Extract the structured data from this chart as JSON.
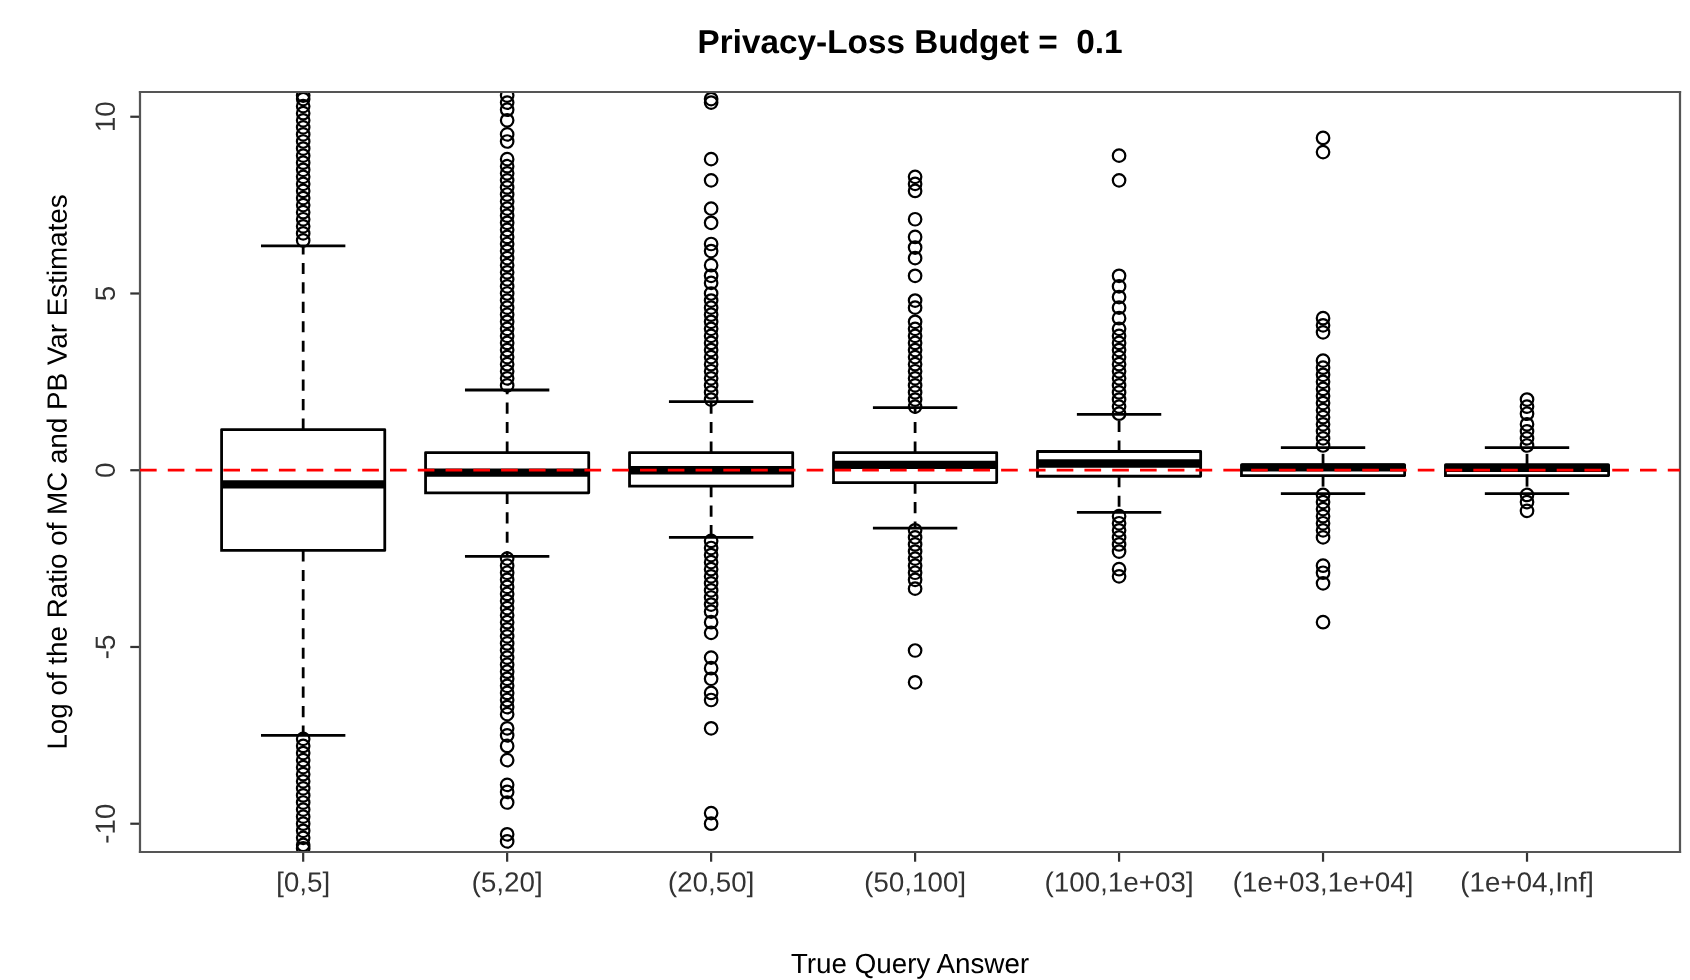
{
  "chart_data": {
    "type": "box",
    "title": "Privacy-Loss Budget =  0.1",
    "xlabel": "True Query Answer",
    "ylabel": "Log of the Ratio of MC and PB Var Estimates",
    "categories": [
      "[0,5]",
      "(5,20]",
      "(20,50]",
      "(50,100]",
      "(100,1e+03]",
      "(1e+03,1e+04]",
      "(1e+04,Inf]"
    ],
    "boxes": [
      {
        "low": -7.5,
        "q1": -2.27,
        "median": -0.4,
        "q3": 1.15,
        "high": 6.35,
        "outliers": [
          6.5,
          6.7,
          6.9,
          7.1,
          7.3,
          7.5,
          7.7,
          7.9,
          8.1,
          8.3,
          8.5,
          8.7,
          8.9,
          9.1,
          9.3,
          9.5,
          9.7,
          9.9,
          10.1,
          10.3,
          10.5,
          10.6,
          -7.6,
          -7.8,
          -8.0,
          -8.2,
          -8.4,
          -8.6,
          -8.8,
          -9.0,
          -9.2,
          -9.4,
          -9.6,
          -9.8,
          -10.0,
          -10.2,
          -10.4,
          -10.6,
          -10.7
        ]
      },
      {
        "low": -2.44,
        "q1": -0.64,
        "median": -0.07,
        "q3": 0.5,
        "high": 2.27,
        "outliers": [
          2.4,
          2.6,
          2.8,
          3.0,
          3.2,
          3.4,
          3.6,
          3.8,
          4.0,
          4.2,
          4.4,
          4.6,
          4.8,
          5.0,
          5.2,
          5.4,
          5.6,
          5.8,
          6.0,
          6.2,
          6.4,
          6.6,
          6.8,
          7.0,
          7.2,
          7.4,
          7.6,
          7.8,
          8.0,
          8.2,
          8.4,
          8.6,
          8.8,
          9.3,
          9.5,
          9.9,
          10.2,
          10.4,
          10.6,
          -2.5,
          -2.7,
          -2.9,
          -3.1,
          -3.3,
          -3.5,
          -3.7,
          -3.9,
          -4.1,
          -4.3,
          -4.5,
          -4.7,
          -4.9,
          -5.1,
          -5.3,
          -5.5,
          -5.7,
          -5.9,
          -6.1,
          -6.3,
          -6.5,
          -6.7,
          -6.9,
          -7.3,
          -7.5,
          -7.8,
          -8.2,
          -8.9,
          -9.1,
          -9.4,
          -10.3,
          -10.5
        ]
      },
      {
        "low": -1.9,
        "q1": -0.45,
        "median": 0.0,
        "q3": 0.5,
        "high": 1.94,
        "outliers": [
          2.0,
          2.2,
          2.4,
          2.6,
          2.8,
          3.0,
          3.2,
          3.4,
          3.6,
          3.8,
          4.0,
          4.2,
          4.4,
          4.6,
          4.8,
          5.0,
          5.3,
          5.5,
          5.8,
          6.2,
          6.4,
          7.0,
          7.4,
          8.2,
          8.8,
          10.4,
          10.5,
          -2.0,
          -2.2,
          -2.4,
          -2.6,
          -2.8,
          -3.0,
          -3.2,
          -3.4,
          -3.6,
          -3.8,
          -4.0,
          -4.3,
          -4.6,
          -5.3,
          -5.6,
          -5.9,
          -6.3,
          -6.5,
          -7.3,
          -9.7,
          -10.0
        ]
      },
      {
        "low": -1.64,
        "q1": -0.35,
        "median": 0.15,
        "q3": 0.5,
        "high": 1.77,
        "outliers": [
          1.8,
          2.0,
          2.2,
          2.4,
          2.6,
          2.8,
          3.0,
          3.2,
          3.4,
          3.6,
          3.8,
          4.0,
          4.2,
          4.6,
          4.8,
          5.5,
          6.0,
          6.3,
          6.6,
          7.1,
          7.9,
          8.1,
          8.3,
          -1.7,
          -1.9,
          -2.1,
          -2.3,
          -2.5,
          -2.7,
          -2.9,
          -3.1,
          -3.35,
          -5.1,
          -6.0
        ]
      },
      {
        "low": -1.19,
        "q1": -0.17,
        "median": 0.19,
        "q3": 0.53,
        "high": 1.58,
        "outliers": [
          1.6,
          1.8,
          2.0,
          2.2,
          2.4,
          2.6,
          2.8,
          3.0,
          3.2,
          3.4,
          3.6,
          3.8,
          4.0,
          4.3,
          4.6,
          4.9,
          5.2,
          5.5,
          8.2,
          8.9,
          -1.3,
          -1.5,
          -1.7,
          -1.9,
          -2.1,
          -2.3,
          -2.8,
          -3.0
        ]
      },
      {
        "low": -0.66,
        "q1": -0.15,
        "median": 0.08,
        "q3": 0.15,
        "high": 0.64,
        "outliers": [
          0.7,
          0.9,
          1.1,
          1.3,
          1.5,
          1.7,
          1.9,
          2.1,
          2.3,
          2.5,
          2.7,
          2.9,
          3.1,
          3.9,
          4.1,
          4.3,
          9.0,
          9.4,
          -0.7,
          -0.9,
          -1.1,
          -1.3,
          -1.5,
          -1.7,
          -1.9,
          -2.7,
          -2.9,
          -3.2,
          -4.3
        ]
      },
      {
        "low": -0.66,
        "q1": -0.15,
        "median": 0.07,
        "q3": 0.15,
        "high": 0.64,
        "outliers": [
          0.7,
          0.9,
          1.1,
          1.3,
          1.6,
          1.8,
          2.0,
          -0.7,
          -0.9,
          -1.15
        ]
      }
    ],
    "ylim": [
      -10.8,
      10.7
    ],
    "yticks": [
      -10,
      -5,
      0,
      5,
      10
    ],
    "ref_lines": [
      {
        "axis": "y",
        "value": 0,
        "color": "#ff0000",
        "line_style": "dashed"
      }
    ],
    "grid": false,
    "legend": false
  }
}
